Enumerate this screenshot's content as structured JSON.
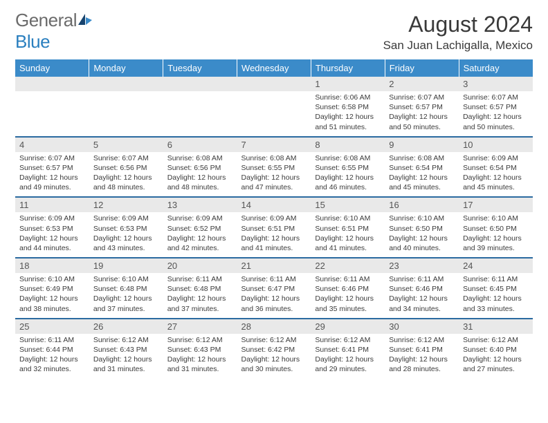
{
  "logo": {
    "general": "General",
    "blue": "Blue"
  },
  "month_title": "August 2024",
  "location": "San Juan Lachigalla, Mexico",
  "colors": {
    "header_bg": "#3b8bc9",
    "header_text": "#ffffff",
    "daynum_bg": "#e9e9e9",
    "daynum_text": "#555555",
    "row_divider": "#2a6aa0",
    "body_text": "#3a3a3a",
    "logo_gray": "#6b6b6b",
    "logo_blue": "#2a7fbf"
  },
  "day_headers": [
    "Sunday",
    "Monday",
    "Tuesday",
    "Wednesday",
    "Thursday",
    "Friday",
    "Saturday"
  ],
  "weeks": [
    [
      null,
      null,
      null,
      null,
      {
        "n": "1",
        "sr": "6:06 AM",
        "ss": "6:58 PM",
        "dl": "12 hours and 51 minutes."
      },
      {
        "n": "2",
        "sr": "6:07 AM",
        "ss": "6:57 PM",
        "dl": "12 hours and 50 minutes."
      },
      {
        "n": "3",
        "sr": "6:07 AM",
        "ss": "6:57 PM",
        "dl": "12 hours and 50 minutes."
      }
    ],
    [
      {
        "n": "4",
        "sr": "6:07 AM",
        "ss": "6:57 PM",
        "dl": "12 hours and 49 minutes."
      },
      {
        "n": "5",
        "sr": "6:07 AM",
        "ss": "6:56 PM",
        "dl": "12 hours and 48 minutes."
      },
      {
        "n": "6",
        "sr": "6:08 AM",
        "ss": "6:56 PM",
        "dl": "12 hours and 48 minutes."
      },
      {
        "n": "7",
        "sr": "6:08 AM",
        "ss": "6:55 PM",
        "dl": "12 hours and 47 minutes."
      },
      {
        "n": "8",
        "sr": "6:08 AM",
        "ss": "6:55 PM",
        "dl": "12 hours and 46 minutes."
      },
      {
        "n": "9",
        "sr": "6:08 AM",
        "ss": "6:54 PM",
        "dl": "12 hours and 45 minutes."
      },
      {
        "n": "10",
        "sr": "6:09 AM",
        "ss": "6:54 PM",
        "dl": "12 hours and 45 minutes."
      }
    ],
    [
      {
        "n": "11",
        "sr": "6:09 AM",
        "ss": "6:53 PM",
        "dl": "12 hours and 44 minutes."
      },
      {
        "n": "12",
        "sr": "6:09 AM",
        "ss": "6:53 PM",
        "dl": "12 hours and 43 minutes."
      },
      {
        "n": "13",
        "sr": "6:09 AM",
        "ss": "6:52 PM",
        "dl": "12 hours and 42 minutes."
      },
      {
        "n": "14",
        "sr": "6:09 AM",
        "ss": "6:51 PM",
        "dl": "12 hours and 41 minutes."
      },
      {
        "n": "15",
        "sr": "6:10 AM",
        "ss": "6:51 PM",
        "dl": "12 hours and 41 minutes."
      },
      {
        "n": "16",
        "sr": "6:10 AM",
        "ss": "6:50 PM",
        "dl": "12 hours and 40 minutes."
      },
      {
        "n": "17",
        "sr": "6:10 AM",
        "ss": "6:50 PM",
        "dl": "12 hours and 39 minutes."
      }
    ],
    [
      {
        "n": "18",
        "sr": "6:10 AM",
        "ss": "6:49 PM",
        "dl": "12 hours and 38 minutes."
      },
      {
        "n": "19",
        "sr": "6:10 AM",
        "ss": "6:48 PM",
        "dl": "12 hours and 37 minutes."
      },
      {
        "n": "20",
        "sr": "6:11 AM",
        "ss": "6:48 PM",
        "dl": "12 hours and 37 minutes."
      },
      {
        "n": "21",
        "sr": "6:11 AM",
        "ss": "6:47 PM",
        "dl": "12 hours and 36 minutes."
      },
      {
        "n": "22",
        "sr": "6:11 AM",
        "ss": "6:46 PM",
        "dl": "12 hours and 35 minutes."
      },
      {
        "n": "23",
        "sr": "6:11 AM",
        "ss": "6:46 PM",
        "dl": "12 hours and 34 minutes."
      },
      {
        "n": "24",
        "sr": "6:11 AM",
        "ss": "6:45 PM",
        "dl": "12 hours and 33 minutes."
      }
    ],
    [
      {
        "n": "25",
        "sr": "6:11 AM",
        "ss": "6:44 PM",
        "dl": "12 hours and 32 minutes."
      },
      {
        "n": "26",
        "sr": "6:12 AM",
        "ss": "6:43 PM",
        "dl": "12 hours and 31 minutes."
      },
      {
        "n": "27",
        "sr": "6:12 AM",
        "ss": "6:43 PM",
        "dl": "12 hours and 31 minutes."
      },
      {
        "n": "28",
        "sr": "6:12 AM",
        "ss": "6:42 PM",
        "dl": "12 hours and 30 minutes."
      },
      {
        "n": "29",
        "sr": "6:12 AM",
        "ss": "6:41 PM",
        "dl": "12 hours and 29 minutes."
      },
      {
        "n": "30",
        "sr": "6:12 AM",
        "ss": "6:41 PM",
        "dl": "12 hours and 28 minutes."
      },
      {
        "n": "31",
        "sr": "6:12 AM",
        "ss": "6:40 PM",
        "dl": "12 hours and 27 minutes."
      }
    ]
  ],
  "label_sunrise": "Sunrise: ",
  "label_sunset": "Sunset: ",
  "label_daylight": "Daylight: "
}
